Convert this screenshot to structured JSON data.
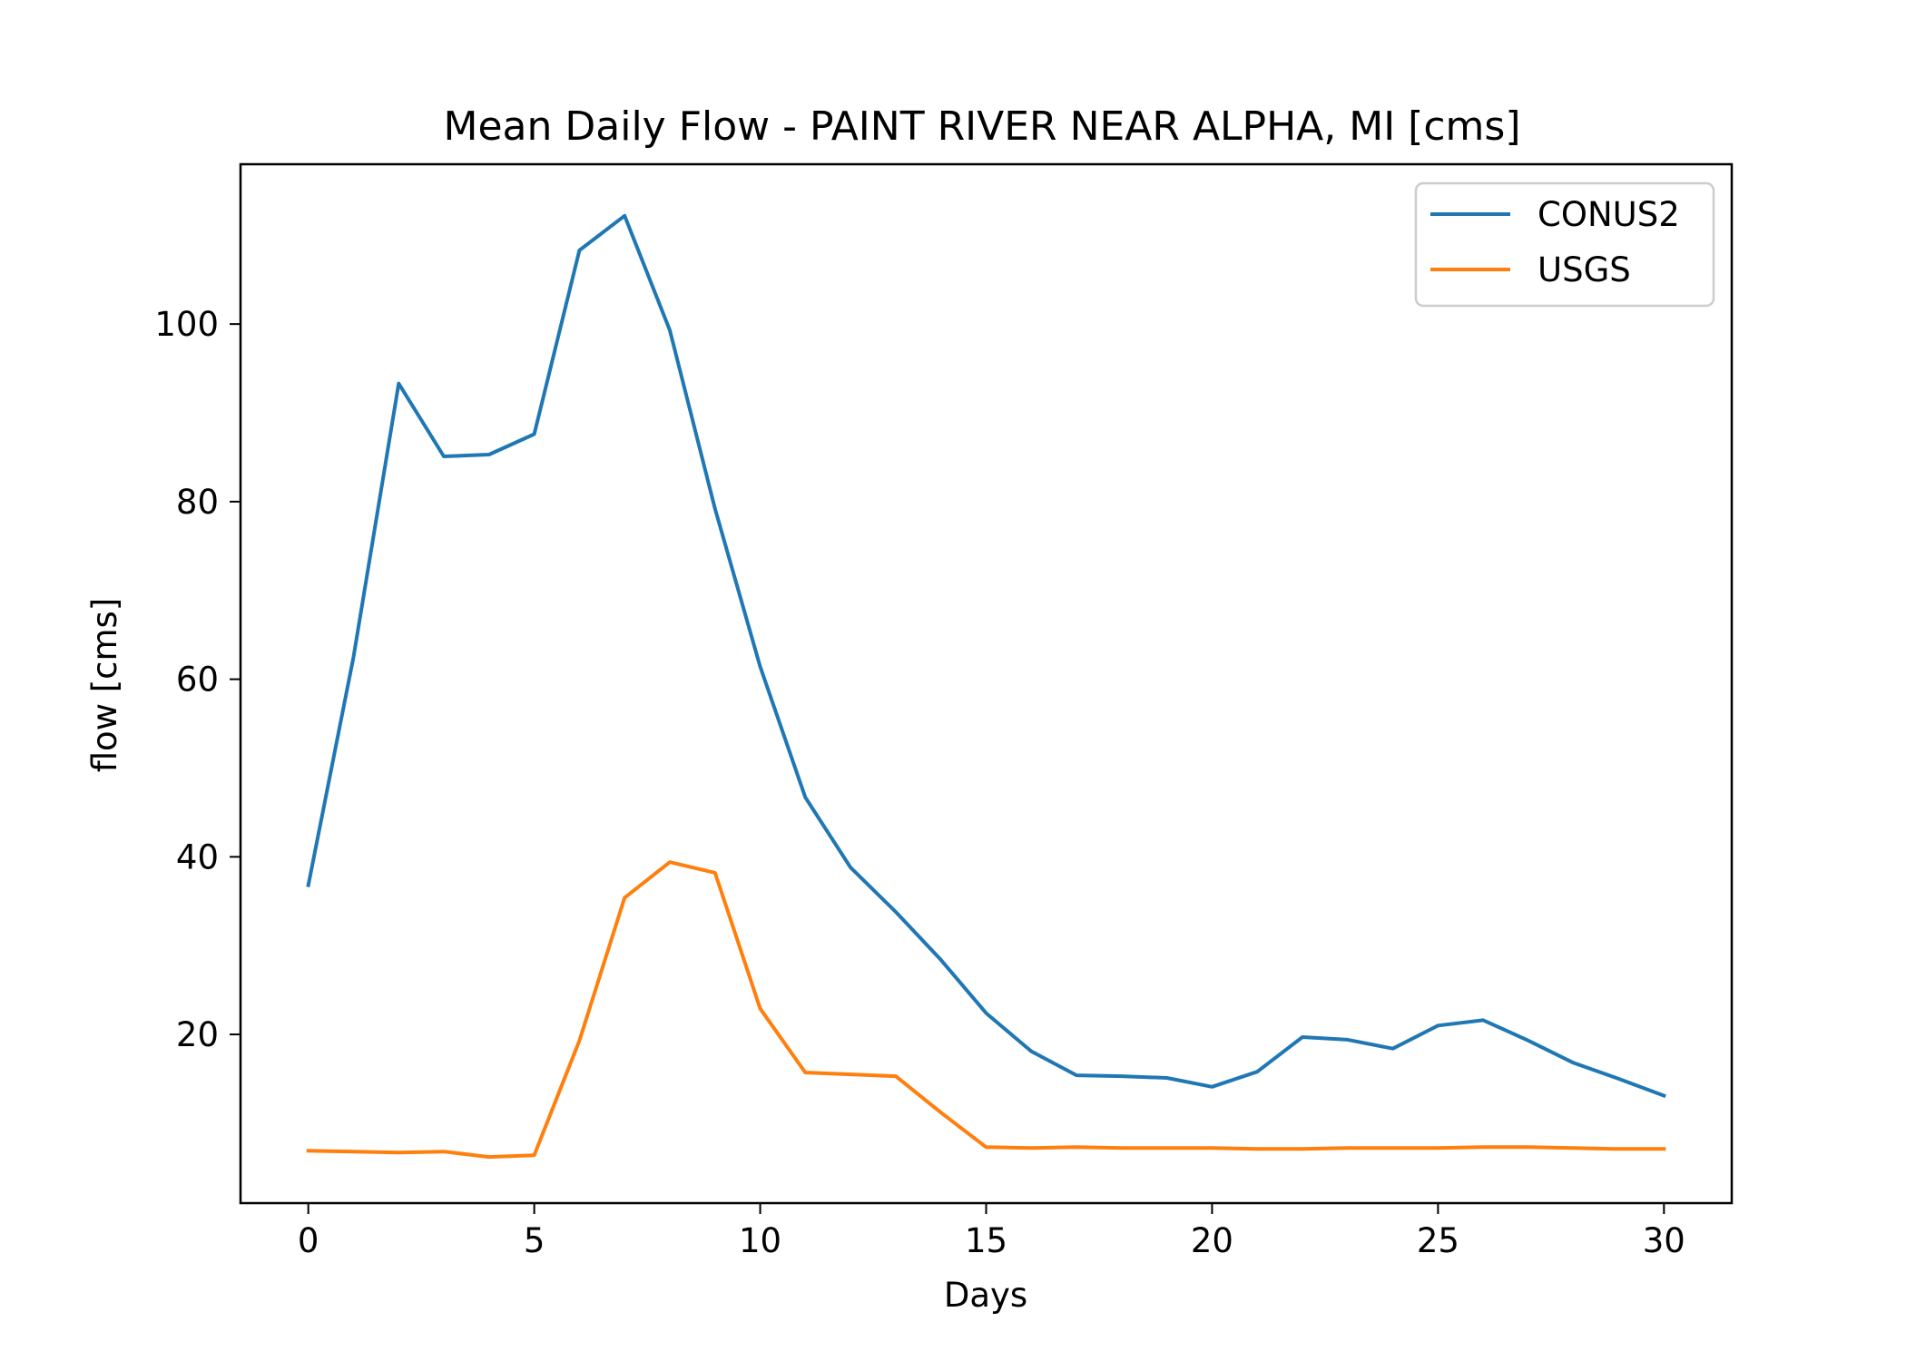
{
  "chart_data": {
    "type": "line",
    "title": "Mean Daily Flow - PAINT RIVER NEAR ALPHA, MI [cms]",
    "xlabel": "Days",
    "ylabel": "flow [cms]",
    "xlim": [
      -1.5,
      31.5
    ],
    "ylim": [
      1,
      118
    ],
    "xticks": [
      0,
      5,
      10,
      15,
      20,
      25,
      30
    ],
    "yticks": [
      20,
      40,
      60,
      80,
      100
    ],
    "grid": false,
    "legend_position": "top-right",
    "x": [
      0,
      1,
      2,
      3,
      4,
      5,
      6,
      7,
      8,
      9,
      10,
      11,
      12,
      13,
      14,
      15,
      16,
      17,
      18,
      19,
      20,
      21,
      22,
      23,
      24,
      25,
      26,
      27,
      28,
      29,
      30
    ],
    "series": [
      {
        "name": "CONUS2",
        "color": "#1f77b4",
        "values": [
          36.8,
          62.5,
          93.3,
          85.1,
          85.3,
          87.6,
          108.3,
          112.2,
          99.3,
          79.2,
          61.4,
          46.7,
          38.8,
          33.8,
          28.4,
          22.4,
          18.1,
          15.4,
          15.3,
          15.1,
          14.1,
          15.8,
          19.7,
          19.4,
          18.4,
          21.0,
          21.6,
          19.3,
          16.8,
          15.0,
          13.1
        ]
      },
      {
        "name": "USGS",
        "color": "#ff7f0e",
        "values": [
          6.9,
          6.8,
          6.7,
          6.8,
          6.2,
          6.4,
          19.3,
          35.4,
          39.4,
          38.2,
          22.9,
          15.7,
          15.5,
          15.3,
          11.2,
          7.3,
          7.2,
          7.3,
          7.2,
          7.2,
          7.2,
          7.1,
          7.1,
          7.2,
          7.2,
          7.2,
          7.3,
          7.3,
          7.2,
          7.1,
          7.1
        ]
      }
    ]
  }
}
